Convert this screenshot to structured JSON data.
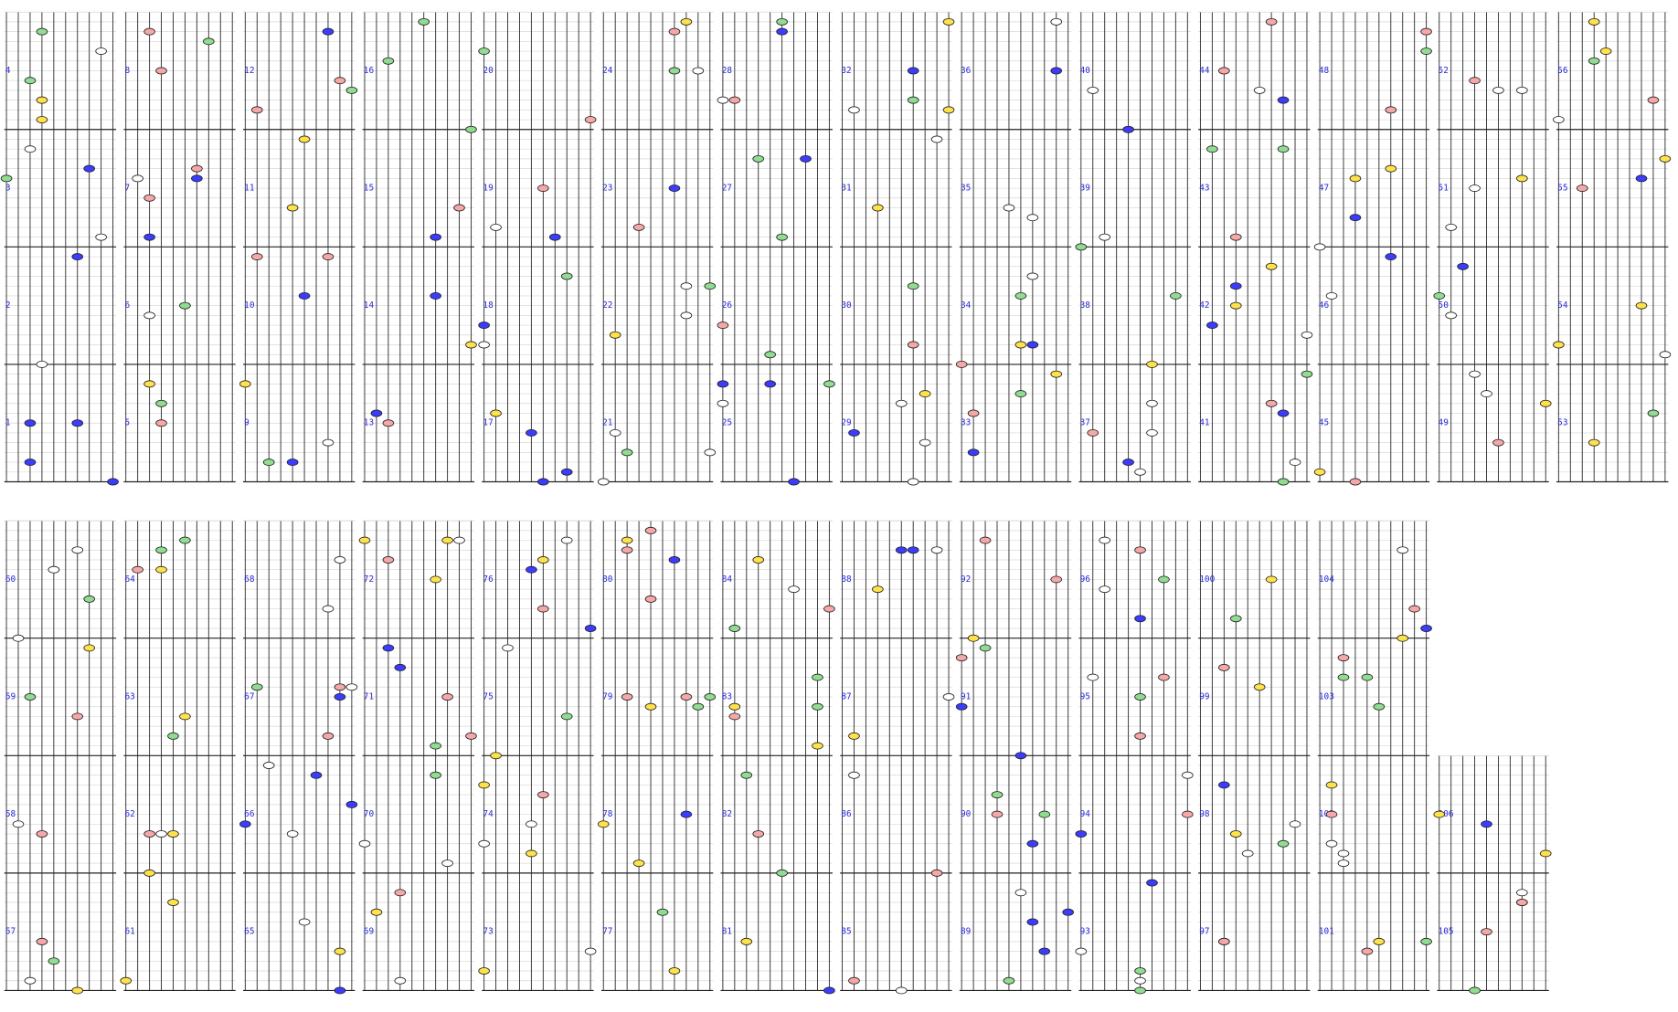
{
  "measures": [
    1,
    2,
    3,
    4,
    5,
    6,
    7,
    8,
    9,
    10,
    11,
    12,
    13,
    14,
    15,
    16,
    17,
    18,
    19,
    20,
    21,
    22,
    23,
    24,
    25,
    26,
    27,
    28,
    29,
    30,
    31,
    32,
    33,
    34,
    35,
    36,
    37,
    38,
    39,
    40,
    41,
    42,
    43,
    44,
    45,
    46,
    47,
    48,
    49,
    50,
    51,
    52,
    53,
    54,
    55,
    56,
    57,
    58,
    59,
    60,
    61,
    62,
    63,
    64,
    65,
    66,
    67,
    68,
    69,
    70,
    71,
    72,
    73,
    74,
    75,
    76,
    77,
    78,
    79,
    80,
    81,
    82,
    83,
    84,
    85,
    86,
    87,
    88,
    89,
    90,
    91,
    92,
    93,
    94,
    95,
    96,
    97,
    98,
    99,
    100,
    101,
    102,
    103,
    104,
    105,
    106
  ]
}
